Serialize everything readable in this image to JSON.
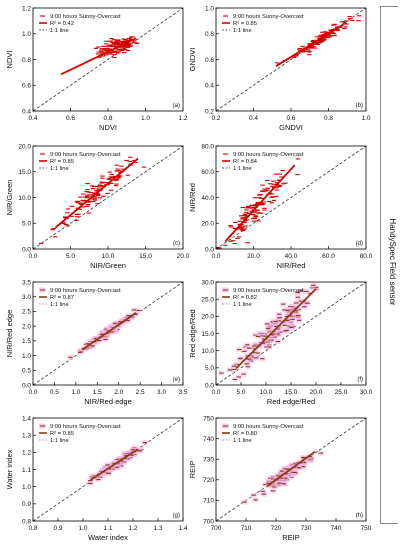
{
  "side_label": "HandySpec Field sensor",
  "chart_data": [
    {
      "type": "scatter",
      "panel": "(a)",
      "xlabel": "NDVI",
      "ylabel": "NDVI",
      "xlim": [
        0.4,
        1.2
      ],
      "ylim": [
        0.4,
        1.2
      ],
      "xticks": [
        "0.4",
        "0.6",
        "0.8",
        "1.0",
        "1.2"
      ],
      "yticks": [
        "0.4",
        "0.6",
        "0.8",
        "1.0",
        "1.2"
      ],
      "legend": [
        "9:00 hours Sunny-Overcast",
        "R² = 0.42",
        "1:1 line"
      ],
      "regression": {
        "slope": 0.7,
        "intercept": 0.3,
        "x_range": [
          0.55,
          0.95
        ]
      },
      "scatter_center": [
        0.85,
        0.9
      ],
      "scatter_spread": [
        0.05,
        0.03
      ],
      "scatter_slope": 0.4,
      "color": "#d40000",
      "halo": false
    },
    {
      "type": "scatter",
      "panel": "(b)",
      "xlabel": "GNDVI",
      "ylabel": "GNDVI",
      "xlim": [
        0.2,
        1.0
      ],
      "ylim": [
        0.2,
        1.0
      ],
      "xticks": [
        "0.2",
        "0.4",
        "0.6",
        "0.8",
        "1.0"
      ],
      "yticks": [
        "0.2",
        "0.4",
        "0.6",
        "0.8",
        "1.0"
      ],
      "legend": [
        "9:00 hours Sunny-Overcast",
        "R² = 0.85",
        "1:1 line"
      ],
      "regression": {
        "slope": 0.9,
        "intercept": 0.08,
        "x_range": [
          0.52,
          0.88
        ]
      },
      "scatter_center": [
        0.77,
        0.77
      ],
      "scatter_spread": [
        0.07,
        0.02
      ],
      "scatter_slope": 0.9,
      "color": "#d40000",
      "halo": false
    },
    {
      "type": "scatter",
      "panel": "(c)",
      "xlabel": "NIR/Green",
      "ylabel": "NIR/Green",
      "xlim": [
        0,
        20
      ],
      "ylim": [
        0,
        20
      ],
      "xticks": [
        "0.0",
        "5.0",
        "10.0",
        "15.0",
        "20.0"
      ],
      "yticks": [
        "0.0",
        "5.0",
        "10.0",
        "15.0",
        "20.0"
      ],
      "legend": [
        "9:00 hours Sunny-Overcast",
        "R² = 0.85",
        "1:1 line"
      ],
      "regression": {
        "slope": 1.22,
        "intercept": 0.5,
        "x_range": [
          3,
          14
        ]
      },
      "scatter_center": [
        8.5,
        10.9
      ],
      "scatter_spread": [
        2.8,
        1.0
      ],
      "scatter_slope": 1.2,
      "color": "#d40000",
      "halo": false
    },
    {
      "type": "scatter",
      "panel": "(d)",
      "xlabel": "NIR/Red",
      "ylabel": "NIR/Red",
      "xlim": [
        0,
        80
      ],
      "ylim": [
        0,
        80
      ],
      "xticks": [
        "0.0",
        "20.0",
        "40.0",
        "60.0",
        "80.0"
      ],
      "yticks": [
        "0.0",
        "20.0",
        "40.0",
        "60.0",
        "80.0"
      ],
      "legend": [
        "9:00 hours Sunny-Overcast",
        "R² = 0.84",
        "1:1 line"
      ],
      "regression": {
        "slope": 1.6,
        "intercept": -2,
        "x_range": [
          5,
          42
        ]
      },
      "scatter_center": [
        22,
        33
      ],
      "scatter_spread": [
        9,
        5
      ],
      "scatter_slope": 1.55,
      "color": "#d40000",
      "halo": false
    },
    {
      "type": "scatter",
      "panel": "(e)",
      "xlabel": "NIR/Red edge",
      "ylabel": "NIR/Red edge",
      "xlim": [
        0.0,
        3.5
      ],
      "ylim": [
        0.0,
        3.5
      ],
      "xticks": [
        "0.0",
        "0.5",
        "1.0",
        "1.5",
        "2.0",
        "2.5",
        "3.0",
        "3.5"
      ],
      "yticks": [
        "0.0",
        "0.5",
        "1.0",
        "1.5",
        "2.0",
        "2.5",
        "3.0",
        "3.5"
      ],
      "legend": [
        "9:00 hours Sunny-Overcast",
        "R² = 0.87",
        "1:1 line"
      ],
      "regression": {
        "slope": 1.0,
        "intercept": 0.05,
        "x_range": [
          1.15,
          2.4
        ]
      },
      "scatter_center": [
        1.75,
        1.8
      ],
      "scatter_spread": [
        0.3,
        0.07
      ],
      "scatter_slope": 1.0,
      "color": "#8b3a0f",
      "halo": true
    },
    {
      "type": "scatter",
      "panel": "(f)",
      "xlabel": "Red edge/Red",
      "ylabel": "Red edge/Red",
      "xlim": [
        0,
        30
      ],
      "ylim": [
        0,
        30
      ],
      "xticks": [
        "0.0",
        "5.0",
        "10.0",
        "15.0",
        "20.0",
        "25.0",
        "30.0"
      ],
      "yticks": [
        "0.0",
        "5.0",
        "10.0",
        "15.0",
        "20.0",
        "25.0",
        "30.0"
      ],
      "legend": [
        "9:00 hours Sunny-Overcast",
        "R² = 0.82",
        "1:1 line"
      ],
      "regression": {
        "slope": 1.45,
        "intercept": -1,
        "x_range": [
          4,
          20
        ]
      },
      "scatter_center": [
        11,
        15
      ],
      "scatter_spread": [
        3.8,
        2.2
      ],
      "scatter_slope": 1.4,
      "color": "#8b3a0f",
      "halo": true
    },
    {
      "type": "scatter",
      "panel": "(g)",
      "xlabel": "Water index",
      "ylabel": "Water index",
      "xlim": [
        0.8,
        1.4
      ],
      "ylim": [
        0.8,
        1.4
      ],
      "xticks": [
        "0.8",
        "0.9",
        "1.0",
        "1.1",
        "1.2",
        "1.3",
        "1.4"
      ],
      "yticks": [
        "0.8",
        "0.9",
        "1.0",
        "1.1",
        "1.2",
        "1.3",
        "1.4"
      ],
      "legend": [
        "9:00 hours Sunny-Overcast",
        "R² = 0.85",
        "1:1 line"
      ],
      "regression": {
        "slope": 0.95,
        "intercept": 0.06,
        "x_range": [
          1.03,
          1.22
        ]
      },
      "scatter_center": [
        1.13,
        1.13
      ],
      "scatter_spread": [
        0.045,
        0.012
      ],
      "scatter_slope": 0.95,
      "color": "#8b3a0f",
      "halo": true
    },
    {
      "type": "scatter",
      "panel": "(h)",
      "xlabel": "REIP",
      "ylabel": "REIP",
      "xlim": [
        700,
        750
      ],
      "ylim": [
        700,
        750
      ],
      "xticks": [
        "700",
        "710",
        "720",
        "730",
        "740",
        "750"
      ],
      "yticks": [
        "700",
        "710",
        "720",
        "730",
        "740",
        "750"
      ],
      "legend": [
        "9:00 hours Sunny-Overcast",
        "R² = 0.80",
        "1:1 line"
      ],
      "regression": {
        "slope": 1.05,
        "intercept": -36,
        "x_range": [
          717,
          733
        ]
      },
      "scatter_center": [
        724.5,
        724
      ],
      "scatter_spread": [
        4,
        1.4
      ],
      "scatter_slope": 1.0,
      "color": "#8b3a0f",
      "halo": true
    }
  ]
}
